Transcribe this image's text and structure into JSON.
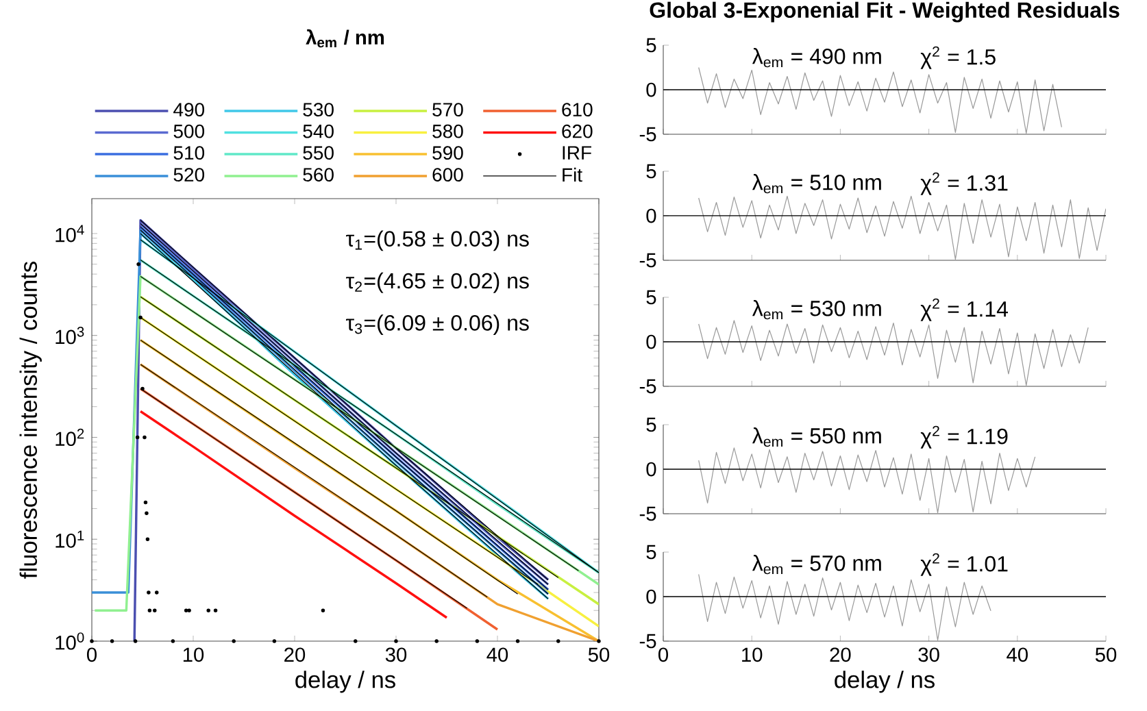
{
  "chart_data": [
    {
      "type": "line",
      "xlabel": "delay / ns",
      "ylabel": "fluorescence intensity / counts",
      "legend_title": "λ$_{em}$ / nm",
      "legend": "top",
      "log": "y",
      "xlim": [
        0,
        50
      ],
      "xticks": [
        0,
        10,
        20,
        30,
        40,
        50
      ],
      "ylim": [
        1,
        22000
      ],
      "yticks": [
        {
          "value": 1,
          "label": "10$^{0}$"
        },
        {
          "value": 10,
          "label": "10$^{1}$"
        },
        {
          "value": 100,
          "label": "10$^{2}$"
        },
        {
          "value": 1000,
          "label": "10$^{3}$"
        },
        {
          "value": 10000,
          "label": "10$^{4}$"
        }
      ],
      "annotations": [
        "τ$_{1}$=(0.58 ± 0.03) ns",
        "τ$_{2}$=(4.65 ± 0.02) ns",
        "τ$_{3}$=(6.09 ± 0.06) ns"
      ],
      "series": [
        {
          "name": "490",
          "color": "#4b4fb0",
          "x": [
            4.2,
            4.8,
            10,
            20,
            30,
            40,
            45
          ],
          "values": [
            1,
            13500,
            4600,
            600,
            78,
            10.5,
            4.0
          ]
        },
        {
          "name": "500",
          "color": "#5a6ad0",
          "x": [
            4.8,
            10,
            20,
            30,
            40,
            45
          ],
          "values": [
            12500,
            4300,
            545,
            70,
            9.5,
            3.6
          ]
        },
        {
          "name": "510",
          "color": "#3a6ee0",
          "x": [
            4.8,
            10,
            20,
            30,
            40,
            45
          ],
          "values": [
            11600,
            4000,
            495,
            64,
            8.6,
            3.2
          ]
        },
        {
          "name": "520",
          "color": "#3a8fd8",
          "x": [
            0,
            3.6,
            4.8,
            10,
            20,
            30,
            40,
            45
          ],
          "values": [
            3,
            3,
            10800,
            3750,
            450,
            58,
            7.8,
            2.9
          ]
        },
        {
          "name": "530",
          "color": "#40c8e8",
          "x": [
            4.8,
            10,
            20,
            30,
            40,
            45
          ],
          "values": [
            10000,
            3500,
            410,
            53,
            7.0,
            2.6
          ]
        },
        {
          "name": "540",
          "color": "#50e0e0",
          "x": [
            4.8,
            10,
            20,
            30,
            40,
            50
          ],
          "values": [
            8700,
            3660,
            690,
            130,
            25,
            4.7
          ]
        },
        {
          "name": "550",
          "color": "#60e8c8",
          "x": [
            4.8,
            10,
            20,
            30,
            40,
            50
          ],
          "values": [
            5500,
            2440,
            510,
            107,
            22,
            4.7
          ]
        },
        {
          "name": "560",
          "color": "#90f090",
          "x": [
            0.3,
            3.4,
            4.8,
            10,
            20,
            30,
            40,
            50
          ],
          "values": [
            2,
            2,
            3800,
            1710,
            370,
            79,
            17,
            3.6
          ]
        },
        {
          "name": "570",
          "color": "#c8f040",
          "x": [
            4.8,
            10,
            20,
            30,
            40,
            50
          ],
          "values": [
            2400,
            1080,
            232,
            50,
            10.7,
            2.3
          ]
        },
        {
          "name": "580",
          "color": "#f8f040",
          "x": [
            4.8,
            10,
            20,
            30,
            40,
            50
          ],
          "values": [
            1500,
            674,
            145,
            31,
            6.7,
            1.4
          ]
        },
        {
          "name": "590",
          "color": "#f8c030",
          "x": [
            4.8,
            10,
            20,
            30,
            40,
            50
          ],
          "values": [
            900,
            404,
            87,
            19,
            4.0,
            1
          ]
        },
        {
          "name": "600",
          "color": "#f0a030",
          "x": [
            4.8,
            10,
            20,
            30,
            40,
            50
          ],
          "values": [
            520,
            233,
            50,
            11,
            2.3,
            1
          ]
        },
        {
          "name": "610",
          "color": "#f06030",
          "x": [
            4.8,
            10,
            20,
            30,
            40
          ],
          "values": [
            300,
            135,
            29,
            6.2,
            1.3
          ]
        },
        {
          "name": "620",
          "color": "#ff1010",
          "x": [
            4.8,
            10,
            20,
            30,
            35
          ],
          "values": [
            180,
            81,
            17,
            3.7,
            1.7
          ]
        },
        {
          "name": "IRF",
          "type": "scatter",
          "marker": "circle",
          "color": "#000000",
          "x": [
            0,
            2,
            4.3,
            4.5,
            4.6,
            4.8,
            5.0,
            5.2,
            5.3,
            5.4,
            5.5,
            5.6,
            5.7,
            6.2,
            6.4,
            8,
            9.3,
            9.6,
            11.5,
            12.2,
            14,
            18,
            22.8,
            26,
            30,
            34,
            38,
            42,
            46,
            50
          ],
          "values": [
            1,
            1,
            1,
            100,
            5000,
            1500,
            300,
            100,
            23,
            18,
            10,
            3,
            2,
            2,
            3,
            1,
            2,
            2,
            2,
            2,
            1,
            1,
            2,
            1,
            1,
            1,
            1,
            1,
            1,
            1
          ]
        },
        {
          "name": "Fit",
          "color": "#000000",
          "x": [
            4.8,
            30,
            45
          ],
          "values": [
            13500,
            78,
            4.0
          ]
        },
        {
          "color": "#000000",
          "x": [
            4.8,
            30,
            45
          ],
          "values": [
            12500,
            70,
            3.6
          ]
        },
        {
          "color": "#000000",
          "x": [
            4.8,
            30,
            45
          ],
          "values": [
            11600,
            64,
            3.2
          ]
        },
        {
          "color": "#000000",
          "x": [
            4.8,
            30,
            45
          ],
          "values": [
            10800,
            58,
            2.9
          ]
        },
        {
          "color": "#000000",
          "x": [
            4.8,
            30,
            45
          ],
          "values": [
            10000,
            53,
            2.6
          ]
        },
        {
          "color": "#000000",
          "x": [
            4.8,
            30,
            50
          ],
          "values": [
            8700,
            130,
            4.7
          ]
        },
        {
          "color": "#000000",
          "x": [
            4.8,
            30,
            50
          ],
          "values": [
            5500,
            107,
            4.7
          ]
        },
        {
          "color": "#000000",
          "x": [
            4.8,
            30,
            48
          ],
          "values": [
            3800,
            79,
            4.9
          ]
        },
        {
          "color": "#000000",
          "x": [
            4.8,
            30,
            46
          ],
          "values": [
            2400,
            50,
            4.2
          ]
        },
        {
          "color": "#000000",
          "x": [
            4.8,
            30,
            44
          ],
          "values": [
            1500,
            31,
            3.6
          ]
        },
        {
          "color": "#000000",
          "x": [
            4.8,
            30,
            42
          ],
          "values": [
            900,
            19,
            2.9
          ]
        },
        {
          "color": "#000000",
          "x": [
            4.8,
            30,
            39
          ],
          "values": [
            520,
            11,
            2.7
          ]
        },
        {
          "color": "#000000",
          "x": [
            4.8,
            30,
            37
          ],
          "values": [
            300,
            6.2,
            2.1
          ]
        }
      ]
    },
    {
      "type": "line",
      "title": "Global 3-Exponenial Fit - Weighted Residuals",
      "tick_labels": "y",
      "xlim": [
        0,
        50
      ],
      "xticks": [
        0,
        10,
        20,
        30,
        40,
        50
      ],
      "ylim": [
        -5,
        5
      ],
      "yticks": [
        -5,
        0,
        5
      ],
      "annotations": [
        "λ$_{em}$ = 490 nm",
        "χ$^{2}$ = 1.5"
      ],
      "ref_lines": [
        {
          "axis": "y",
          "value": 0
        }
      ],
      "series": [
        {
          "color": "#999999",
          "x": [
            4,
            5,
            6,
            7,
            8,
            9,
            10,
            11,
            12,
            13,
            14,
            15,
            16,
            17,
            18,
            19,
            20,
            21,
            22,
            23,
            24,
            25,
            26,
            27,
            28,
            29,
            30,
            31,
            32,
            33,
            34,
            35,
            36,
            37,
            38,
            39,
            40,
            41,
            42,
            43,
            44,
            45
          ],
          "values": [
            2.5,
            -1.5,
            1.8,
            -2.0,
            1.2,
            -1.0,
            2.2,
            -2.8,
            0.8,
            -1.6,
            1.5,
            -2.2,
            1.9,
            -1.2,
            1.0,
            -3.0,
            1.6,
            -1.8,
            0.9,
            -2.4,
            1.3,
            -1.4,
            2.0,
            -1.9,
            1.1,
            -2.6,
            1.7,
            -1.5,
            0.8,
            -4.8,
            1.4,
            -2.1,
            1.2,
            -3.2,
            1.0,
            -2.5,
            0.9,
            -4.9,
            1.1,
            -4.6,
            0.6,
            -4.2
          ]
        }
      ]
    },
    {
      "type": "line",
      "tick_labels": "y",
      "xlim": [
        0,
        50
      ],
      "xticks": [
        0,
        10,
        20,
        30,
        40,
        50
      ],
      "ylim": [
        -5,
        5
      ],
      "yticks": [
        -5,
        0,
        5
      ],
      "annotations": [
        "λ$_{em}$ = 510 nm",
        "χ$^{2}$ = 1.31"
      ],
      "ref_lines": [
        {
          "axis": "y",
          "value": 0
        }
      ],
      "series": [
        {
          "color": "#999999",
          "x": [
            4,
            5,
            6,
            7,
            8,
            9,
            10,
            11,
            12,
            13,
            14,
            15,
            16,
            17,
            18,
            19,
            20,
            21,
            22,
            23,
            24,
            25,
            26,
            27,
            28,
            29,
            30,
            31,
            32,
            33,
            34,
            35,
            36,
            37,
            38,
            39,
            40,
            41,
            42,
            43,
            44,
            45,
            46,
            47,
            48,
            49,
            50
          ],
          "values": [
            2.0,
            -1.8,
            1.5,
            -2.2,
            2.1,
            -1.3,
            1.7,
            -2.5,
            1.2,
            -1.6,
            2.2,
            -2.0,
            1.4,
            -1.1,
            1.8,
            -2.6,
            1.3,
            -1.5,
            2.0,
            -1.9,
            1.1,
            -2.3,
            1.6,
            -1.4,
            2.2,
            -2.0,
            1.5,
            -1.7,
            1.2,
            -4.9,
            1.4,
            -3.1,
            1.8,
            -2.4,
            1.3,
            -4.6,
            1.0,
            -2.8,
            1.5,
            -4.2,
            1.2,
            -3.5,
            1.8,
            -4.8,
            0.9,
            -3.9,
            0.8
          ]
        }
      ]
    },
    {
      "type": "line",
      "tick_labels": "y",
      "xlim": [
        0,
        50
      ],
      "xticks": [
        0,
        10,
        20,
        30,
        40,
        50
      ],
      "ylim": [
        -5,
        5
      ],
      "yticks": [
        -5,
        0,
        5
      ],
      "annotations": [
        "λ$_{em}$ = 530 nm",
        "χ$^{2}$ = 1.14"
      ],
      "ref_lines": [
        {
          "axis": "y",
          "value": 0
        }
      ],
      "series": [
        {
          "color": "#999999",
          "x": [
            4,
            5,
            6,
            7,
            8,
            9,
            10,
            11,
            12,
            13,
            14,
            15,
            16,
            17,
            18,
            19,
            20,
            21,
            22,
            23,
            24,
            25,
            26,
            27,
            28,
            29,
            30,
            31,
            32,
            33,
            34,
            35,
            36,
            37,
            38,
            39,
            40,
            41,
            42,
            43,
            44,
            45,
            46,
            47,
            48
          ],
          "values": [
            2.0,
            -1.9,
            1.6,
            -1.4,
            2.4,
            -1.2,
            1.8,
            -2.1,
            1.3,
            -1.6,
            2.0,
            -1.3,
            1.5,
            -2.4,
            1.9,
            -1.1,
            1.6,
            -1.8,
            1.2,
            -2.0,
            1.7,
            -1.5,
            2.1,
            -2.6,
            1.4,
            -1.7,
            1.9,
            -4.1,
            1.3,
            -2.3,
            1.6,
            -4.6,
            1.2,
            -2.5,
            1.5,
            -3.6,
            1.0,
            -4.9,
            0.9,
            -3.0,
            1.4,
            -2.8,
            0.8,
            -2.4,
            1.6
          ]
        }
      ]
    },
    {
      "type": "line",
      "tick_labels": "y",
      "xlim": [
        0,
        50
      ],
      "xticks": [
        0,
        10,
        20,
        30,
        40,
        50
      ],
      "ylim": [
        -5,
        5
      ],
      "yticks": [
        -5,
        0,
        5
      ],
      "annotations": [
        "λ$_{em}$ = 550 nm",
        "χ$^{2}$ = 1.19"
      ],
      "ref_lines": [
        {
          "axis": "y",
          "value": 0
        }
      ],
      "series": [
        {
          "color": "#999999",
          "x": [
            4,
            5,
            6,
            7,
            8,
            9,
            10,
            11,
            12,
            13,
            14,
            15,
            16,
            17,
            18,
            19,
            20,
            21,
            22,
            23,
            24,
            25,
            26,
            27,
            28,
            29,
            30,
            31,
            32,
            33,
            34,
            35,
            36,
            37,
            38,
            39,
            40,
            41,
            42
          ],
          "values": [
            1.0,
            -3.8,
            1.9,
            -1.6,
            2.4,
            -1.3,
            1.7,
            -2.1,
            2.2,
            -1.5,
            1.4,
            -2.6,
            1.8,
            -1.2,
            2.0,
            -1.9,
            1.5,
            -2.3,
            1.6,
            -1.4,
            2.1,
            -2.0,
            1.3,
            -2.8,
            1.7,
            -3.5,
            1.2,
            -4.9,
            1.5,
            -2.6,
            1.1,
            -4.8,
            0.9,
            -3.9,
            1.8,
            -2.4,
            1.2,
            -2.0,
            1.4
          ]
        }
      ]
    },
    {
      "type": "line",
      "xlabel": "delay / ns",
      "xlim": [
        0,
        50
      ],
      "xticks": [
        0,
        10,
        20,
        30,
        40,
        50
      ],
      "ylim": [
        -5,
        5
      ],
      "yticks": [
        -5,
        0,
        5
      ],
      "annotations": [
        "λ$_{em}$ = 570 nm",
        "χ$^{2}$ = 1.01"
      ],
      "ref_lines": [
        {
          "axis": "y",
          "value": 0
        }
      ],
      "series": [
        {
          "color": "#999999",
          "x": [
            4,
            5,
            6,
            7,
            8,
            9,
            10,
            11,
            12,
            13,
            14,
            15,
            16,
            17,
            18,
            19,
            20,
            21,
            22,
            23,
            24,
            25,
            26,
            27,
            28,
            29,
            30,
            31,
            32,
            33,
            34,
            35,
            36,
            37
          ],
          "values": [
            2.5,
            -2.8,
            1.6,
            -1.9,
            2.2,
            -1.3,
            1.8,
            -2.4,
            1.2,
            -3.1,
            1.7,
            -2.0,
            1.4,
            -2.2,
            2.1,
            -1.5,
            1.6,
            -2.7,
            1.3,
            -1.8,
            1.5,
            -2.3,
            1.2,
            -3.3,
            1.9,
            -1.7,
            1.4,
            -4.9,
            1.1,
            -3.4,
            1.6,
            -2.0,
            1.2,
            -1.6
          ]
        }
      ]
    }
  ]
}
